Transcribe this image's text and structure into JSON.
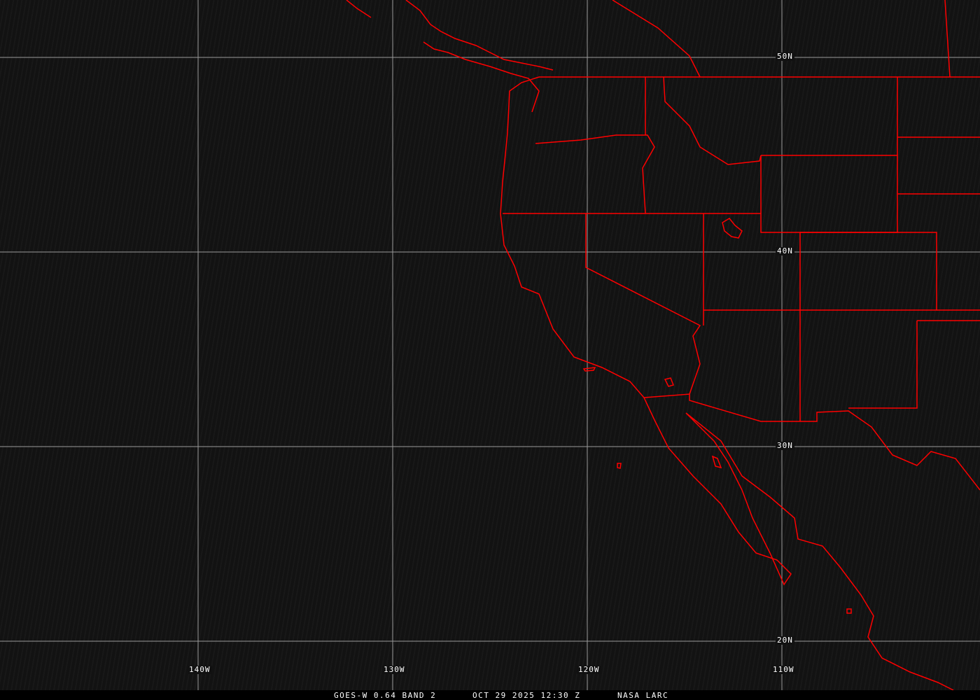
{
  "map": {
    "background_color": "#121212",
    "grid_color": "#9a9a9a",
    "boundary_color": "#ff0000",
    "latitude_labels": [
      "50N",
      "40N",
      "30N",
      "20N"
    ],
    "longitude_labels": [
      "140W",
      "130W",
      "120W",
      "110W"
    ]
  },
  "footer": {
    "satellite_band": "GOES-W 0.64 BAND 2",
    "datetime": "OCT 29 2025 12:30 Z",
    "source": "NASA LARC"
  }
}
